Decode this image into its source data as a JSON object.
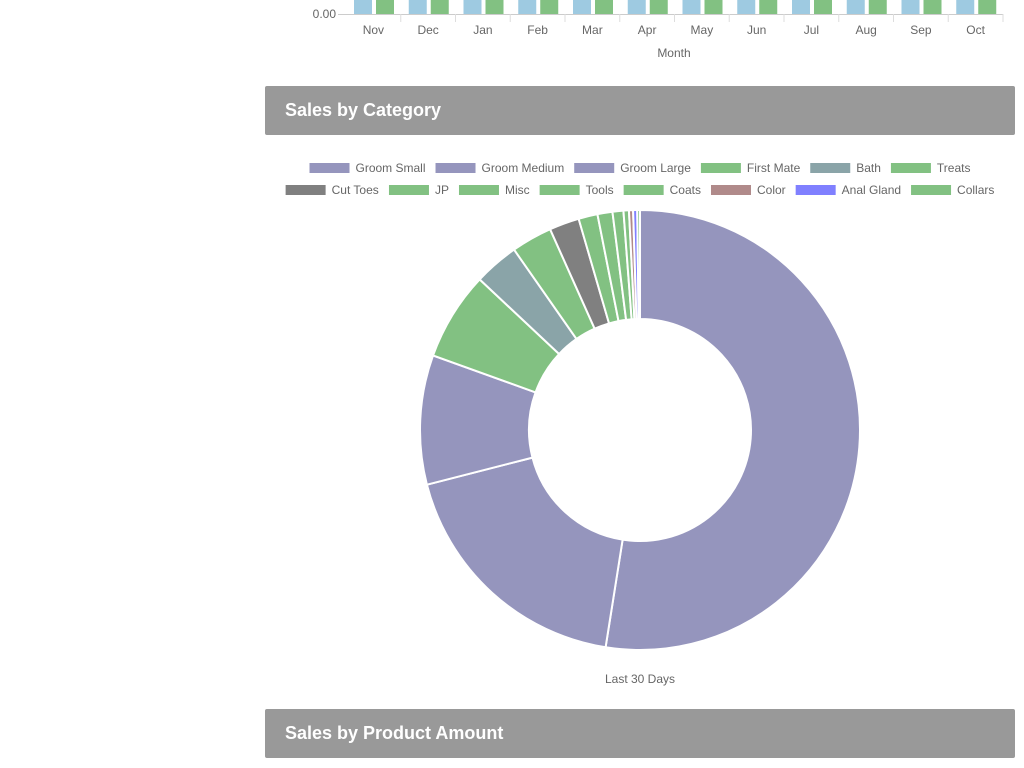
{
  "sections": {
    "category_title": "Sales by Category",
    "product_title": "Sales by Product Amount"
  },
  "chart_data": [
    {
      "type": "bar",
      "xlabel": "Month",
      "categories": [
        "Nov",
        "Dec",
        "Jan",
        "Feb",
        "Mar",
        "Apr",
        "May",
        "Jun",
        "Jul",
        "Aug",
        "Sep",
        "Oct"
      ],
      "y_tick_visible": "0.00",
      "series": [
        {
          "color": "#9ecae1",
          "values": [
            null,
            null,
            null,
            null,
            null,
            null,
            null,
            null,
            null,
            null,
            null,
            null
          ]
        },
        {
          "color": "#82c182",
          "values": [
            null,
            null,
            null,
            null,
            null,
            null,
            null,
            null,
            null,
            null,
            null,
            null
          ]
        }
      ]
    },
    {
      "type": "pie",
      "donut": true,
      "xlabel": "Last 30 Days",
      "legend_position": "top",
      "labels": [
        "Groom Small",
        "Groom Medium",
        "Groom Large",
        "First Mate",
        "Bath",
        "Treats",
        "Cut Toes",
        "JP",
        "Misc",
        "Tools",
        "Coats",
        "Color",
        "Anal Gland",
        "Collars"
      ],
      "colors": [
        "#9595bd",
        "#9595bd",
        "#9595bd",
        "#82c182",
        "#8aa4a8",
        "#82c182",
        "#808080",
        "#82c182",
        "#82c182",
        "#82c182",
        "#82c182",
        "#b08a8a",
        "#8080ff",
        "#82c182"
      ],
      "values": [
        52.5,
        18.5,
        9.5,
        6.5,
        3.3,
        3.0,
        2.2,
        1.4,
        1.1,
        0.8,
        0.4,
        0.3,
        0.3,
        0.2
      ]
    }
  ]
}
